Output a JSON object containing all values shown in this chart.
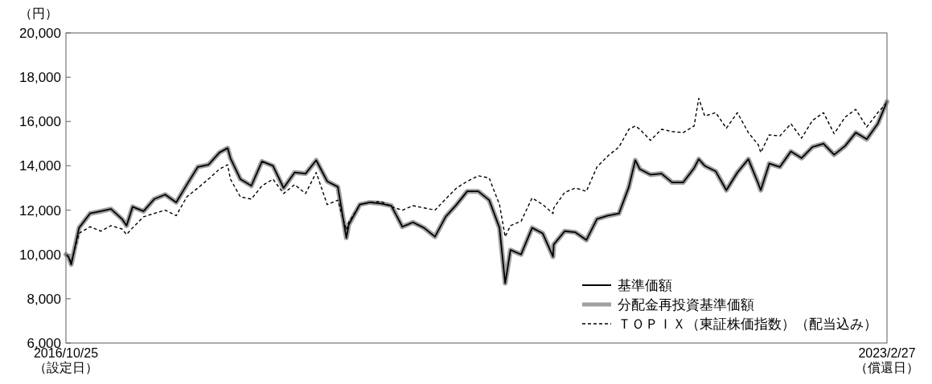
{
  "chart_data": {
    "type": "line",
    "ylabel": "（円）",
    "x": [
      "2016-10-25",
      "2016-11-01",
      "2016-11-09",
      "2016-12-01",
      "2017-01-01",
      "2017-02-01",
      "2017-03-01",
      "2017-04-01",
      "2017-04-14",
      "2017-05-01",
      "2017-06-01",
      "2017-07-01",
      "2017-08-01",
      "2017-09-01",
      "2017-10-01",
      "2017-11-01",
      "2017-12-01",
      "2018-01-01",
      "2018-01-24",
      "2018-02-01",
      "2018-03-01",
      "2018-04-01",
      "2018-05-01",
      "2018-06-01",
      "2018-07-01",
      "2018-08-01",
      "2018-09-01",
      "2018-10-01",
      "2018-11-01",
      "2018-12-01",
      "2018-12-25",
      "2019-01-01",
      "2019-02-01",
      "2019-03-01",
      "2019-04-01",
      "2019-05-01",
      "2019-06-01",
      "2019-07-01",
      "2019-08-01",
      "2019-09-01",
      "2019-10-01",
      "2019-11-01",
      "2019-12-01",
      "2020-01-01",
      "2020-02-01",
      "2020-03-01",
      "2020-03-17",
      "2020-04-01",
      "2020-05-01",
      "2020-06-01",
      "2020-07-01",
      "2020-07-30",
      "2020-08-01",
      "2020-09-01",
      "2020-10-01",
      "2020-11-01",
      "2020-12-01",
      "2021-01-01",
      "2021-02-01",
      "2021-03-01",
      "2021-03-19",
      "2021-04-01",
      "2021-05-01",
      "2021-06-01",
      "2021-07-01",
      "2021-08-01",
      "2021-09-01",
      "2021-09-14",
      "2021-10-01",
      "2021-11-01",
      "2021-12-01",
      "2022-01-01",
      "2022-02-01",
      "2022-03-01",
      "2022-03-08",
      "2022-04-01",
      "2022-05-01",
      "2022-06-01",
      "2022-07-01",
      "2022-08-01",
      "2022-09-01",
      "2022-10-01",
      "2022-11-01",
      "2022-12-01",
      "2023-01-01",
      "2023-02-01",
      "2023-02-27"
    ],
    "series": [
      {
        "name": "基準価額",
        "color": "#000000",
        "line_style": "solid",
        "values": [
          10000,
          9900,
          9550,
          11200,
          11850,
          11950,
          12050,
          11600,
          11300,
          12150,
          11950,
          12500,
          12700,
          12350,
          13150,
          13950,
          14050,
          14600,
          14800,
          14350,
          13400,
          13100,
          14200,
          14000,
          13000,
          13700,
          13650,
          14250,
          13300,
          13050,
          10750,
          11350,
          12250,
          12350,
          12300,
          12200,
          11250,
          11450,
          11200,
          10800,
          11700,
          12250,
          12850,
          12850,
          12450,
          11200,
          8700,
          10200,
          10000,
          11200,
          10950,
          9900,
          10450,
          11050,
          11000,
          10650,
          11600,
          11750,
          11850,
          13050,
          14250,
          13850,
          13600,
          13650,
          13250,
          13250,
          13900,
          14300,
          14000,
          13750,
          12900,
          13700,
          14300,
          13200,
          12900,
          14100,
          13950,
          14650,
          14350,
          14850,
          15000,
          14500,
          14900,
          15500,
          15200,
          15900,
          16900
        ]
      },
      {
        "name": "分配金再投資基準価額",
        "color": "#a0a0a0",
        "line_style": "solid",
        "values": [
          10000,
          9900,
          9550,
          11200,
          11850,
          11950,
          12050,
          11600,
          11300,
          12150,
          11950,
          12500,
          12700,
          12350,
          13150,
          13950,
          14050,
          14600,
          14800,
          14350,
          13400,
          13100,
          14200,
          14000,
          13000,
          13700,
          13650,
          14250,
          13300,
          13050,
          10750,
          11350,
          12250,
          12350,
          12300,
          12200,
          11250,
          11450,
          11200,
          10800,
          11700,
          12250,
          12850,
          12850,
          12450,
          11200,
          8700,
          10200,
          10000,
          11200,
          10950,
          9900,
          10450,
          11050,
          11000,
          10650,
          11600,
          11750,
          11850,
          13050,
          14250,
          13850,
          13600,
          13650,
          13250,
          13250,
          13900,
          14300,
          14000,
          13750,
          12900,
          13700,
          14300,
          13200,
          12900,
          14100,
          13950,
          14650,
          14350,
          14850,
          15000,
          14500,
          14900,
          15500,
          15200,
          15900,
          16900
        ]
      },
      {
        "name": "ＴＯＰＩＸ（東証株価指数）（配当込み）",
        "color": "#000000",
        "line_style": "dashed",
        "values": [
          10000,
          9900,
          9650,
          10950,
          11250,
          11050,
          11300,
          11150,
          10900,
          11200,
          11700,
          11850,
          12000,
          11750,
          12600,
          13000,
          13400,
          13850,
          14050,
          13400,
          12600,
          12500,
          13100,
          13400,
          12750,
          13150,
          12750,
          13700,
          12250,
          12450,
          11100,
          11450,
          12250,
          12350,
          12400,
          12150,
          12000,
          12200,
          12100,
          12000,
          12500,
          13000,
          13300,
          13550,
          13450,
          12250,
          10800,
          11300,
          11500,
          12550,
          12250,
          11850,
          12100,
          12800,
          13000,
          12850,
          13950,
          14450,
          14850,
          15650,
          15800,
          15650,
          15150,
          15650,
          15550,
          15500,
          15800,
          17050,
          16250,
          16400,
          15700,
          16400,
          15500,
          14950,
          14600,
          15400,
          15350,
          15900,
          15250,
          16050,
          16400,
          15450,
          16200,
          16550,
          15750,
          16400,
          16850
        ]
      }
    ],
    "xlim": [
      "2016-10-25",
      "2023-02-27"
    ],
    "xticks": [
      {
        "value": "2016-10-25",
        "label": "2016/10/25\n（設定日）"
      },
      {
        "value": "2023-02-27",
        "label": "2023/2/27\n（償還日）"
      }
    ],
    "ylim": [
      6000,
      20000
    ],
    "yticks": [
      {
        "value": 6000,
        "label": "6,000"
      },
      {
        "value": 8000,
        "label": "8,000"
      },
      {
        "value": 10000,
        "label": "10,000"
      },
      {
        "value": 12000,
        "label": "12,000"
      },
      {
        "value": 14000,
        "label": "14,000"
      },
      {
        "value": 16000,
        "label": "16,000"
      },
      {
        "value": 18000,
        "label": "18,000"
      },
      {
        "value": 20000,
        "label": "20,000"
      }
    ],
    "grid": false,
    "legend": "bottom right"
  }
}
